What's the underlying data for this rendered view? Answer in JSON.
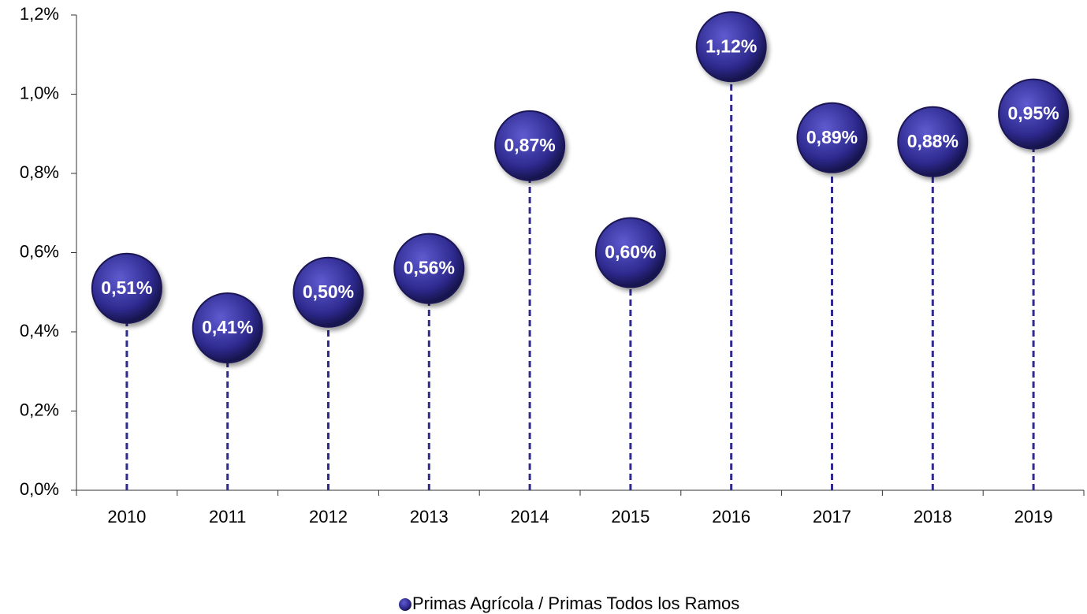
{
  "chart_data": {
    "type": "lollipop",
    "categories": [
      "2010",
      "2011",
      "2012",
      "2013",
      "2014",
      "2015",
      "2016",
      "2017",
      "2018",
      "2019"
    ],
    "series": [
      {
        "name": "Primas Agrícola / Primas Todos los Ramos",
        "color": "#2e2a8f",
        "values": [
          0.51,
          0.41,
          0.5,
          0.56,
          0.87,
          0.6,
          1.12,
          0.89,
          0.88,
          0.95
        ],
        "value_labels": [
          "0,51%",
          "0,41%",
          "0,50%",
          "0,56%",
          "0,87%",
          "0,60%",
          "1,12%",
          "0,89%",
          "0,88%",
          "0,95%"
        ]
      }
    ],
    "ylim": [
      0,
      1.2
    ],
    "yticks": [
      {
        "value": 0,
        "label": "0,0%"
      },
      {
        "value": 0.2,
        "label": "0,2%"
      },
      {
        "value": 0.4,
        "label": "0,4%"
      },
      {
        "value": 0.6,
        "label": "0,6%"
      },
      {
        "value": 0.8,
        "label": "0,8%"
      },
      {
        "value": 1.0,
        "label": "1,0%"
      },
      {
        "value": 1.2,
        "label": "1,2%"
      }
    ],
    "legend": "bottom"
  }
}
